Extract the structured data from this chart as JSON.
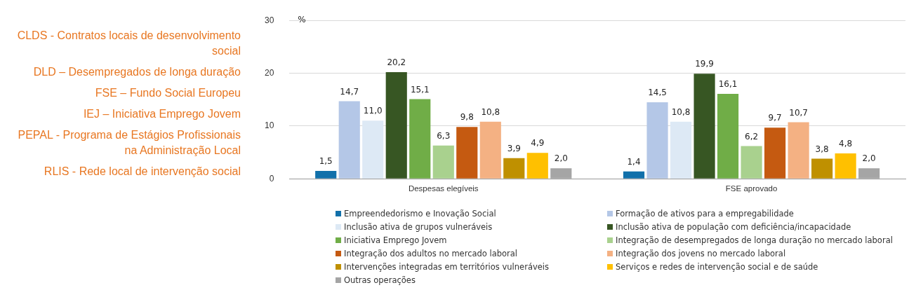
{
  "chart_data": {
    "type": "bar",
    "ylabel": "%",
    "categories": [
      "Despesas elegíveis",
      "FSE aprovado"
    ],
    "series": [
      {
        "name": "Empreendedorismo e Inovação Social",
        "color": "#1170aa",
        "values": [
          1.5,
          1.4
        ],
        "value_labels": [
          "1,5",
          "1,4"
        ]
      },
      {
        "name": "Formação de ativos para a empregabilidade",
        "color": "#b4c7e7",
        "values": [
          14.7,
          14.5
        ],
        "value_labels": [
          "14,7",
          "14,5"
        ]
      },
      {
        "name": "Inclusão ativa de grupos vulneráveis",
        "color": "#dde9f5",
        "values": [
          11.0,
          10.8
        ],
        "value_labels": [
          "11,0",
          "10,8"
        ]
      },
      {
        "name": "Inclusão ativa de população com deficiência/incapacidade",
        "color": "#375623",
        "values": [
          20.2,
          19.9
        ],
        "value_labels": [
          "20,2",
          "19,9"
        ]
      },
      {
        "name": "Iniciativa Emprego Jovem",
        "color": "#70ad47",
        "values": [
          15.1,
          16.1
        ],
        "value_labels": [
          "15,1",
          "16,1"
        ]
      },
      {
        "name": "Integração de desempregados de longa duração no mercado laboral",
        "color": "#a9d18e",
        "values": [
          6.3,
          6.2
        ],
        "value_labels": [
          "6,3",
          "6,2"
        ]
      },
      {
        "name": "Integração dos adultos no mercado laboral",
        "color": "#c55a11",
        "values": [
          9.8,
          9.7
        ],
        "value_labels": [
          "9,8",
          "9,7"
        ]
      },
      {
        "name": "Integração dos jovens no mercado laboral",
        "color": "#f4b183",
        "values": [
          10.8,
          10.7
        ],
        "value_labels": [
          "10,8",
          "10,7"
        ]
      },
      {
        "name": "Intervenções integradas em territórios vulneráveis",
        "color": "#bf9000",
        "values": [
          3.9,
          3.8
        ],
        "value_labels": [
          "3,9",
          "3,8"
        ]
      },
      {
        "name": "Serviços e redes de intervenção social e de saúde",
        "color": "#ffc000",
        "values": [
          4.9,
          4.8
        ],
        "value_labels": [
          "4,9",
          "4,8"
        ]
      },
      {
        "name": "Outras operações",
        "color": "#a5a5a5",
        "values": [
          2.0,
          2.0
        ],
        "value_labels": [
          "2,0",
          "2,0"
        ]
      }
    ],
    "ylim": [
      0,
      30
    ],
    "yticks": [
      0,
      10,
      20,
      30
    ],
    "grid": "y",
    "legend": "bottom",
    "annotations": [
      "CLDS - Contratos locais de desenvolvimento social",
      "DLD – Desempregados de longa duração",
      "FSE – Fundo Social Europeu",
      "IEJ – Iniciativa Emprego Jovem",
      "PEPAL - Programa de Estágios Profissionais na Administração Local",
      "RLIS - Rede local de intervenção social"
    ]
  }
}
